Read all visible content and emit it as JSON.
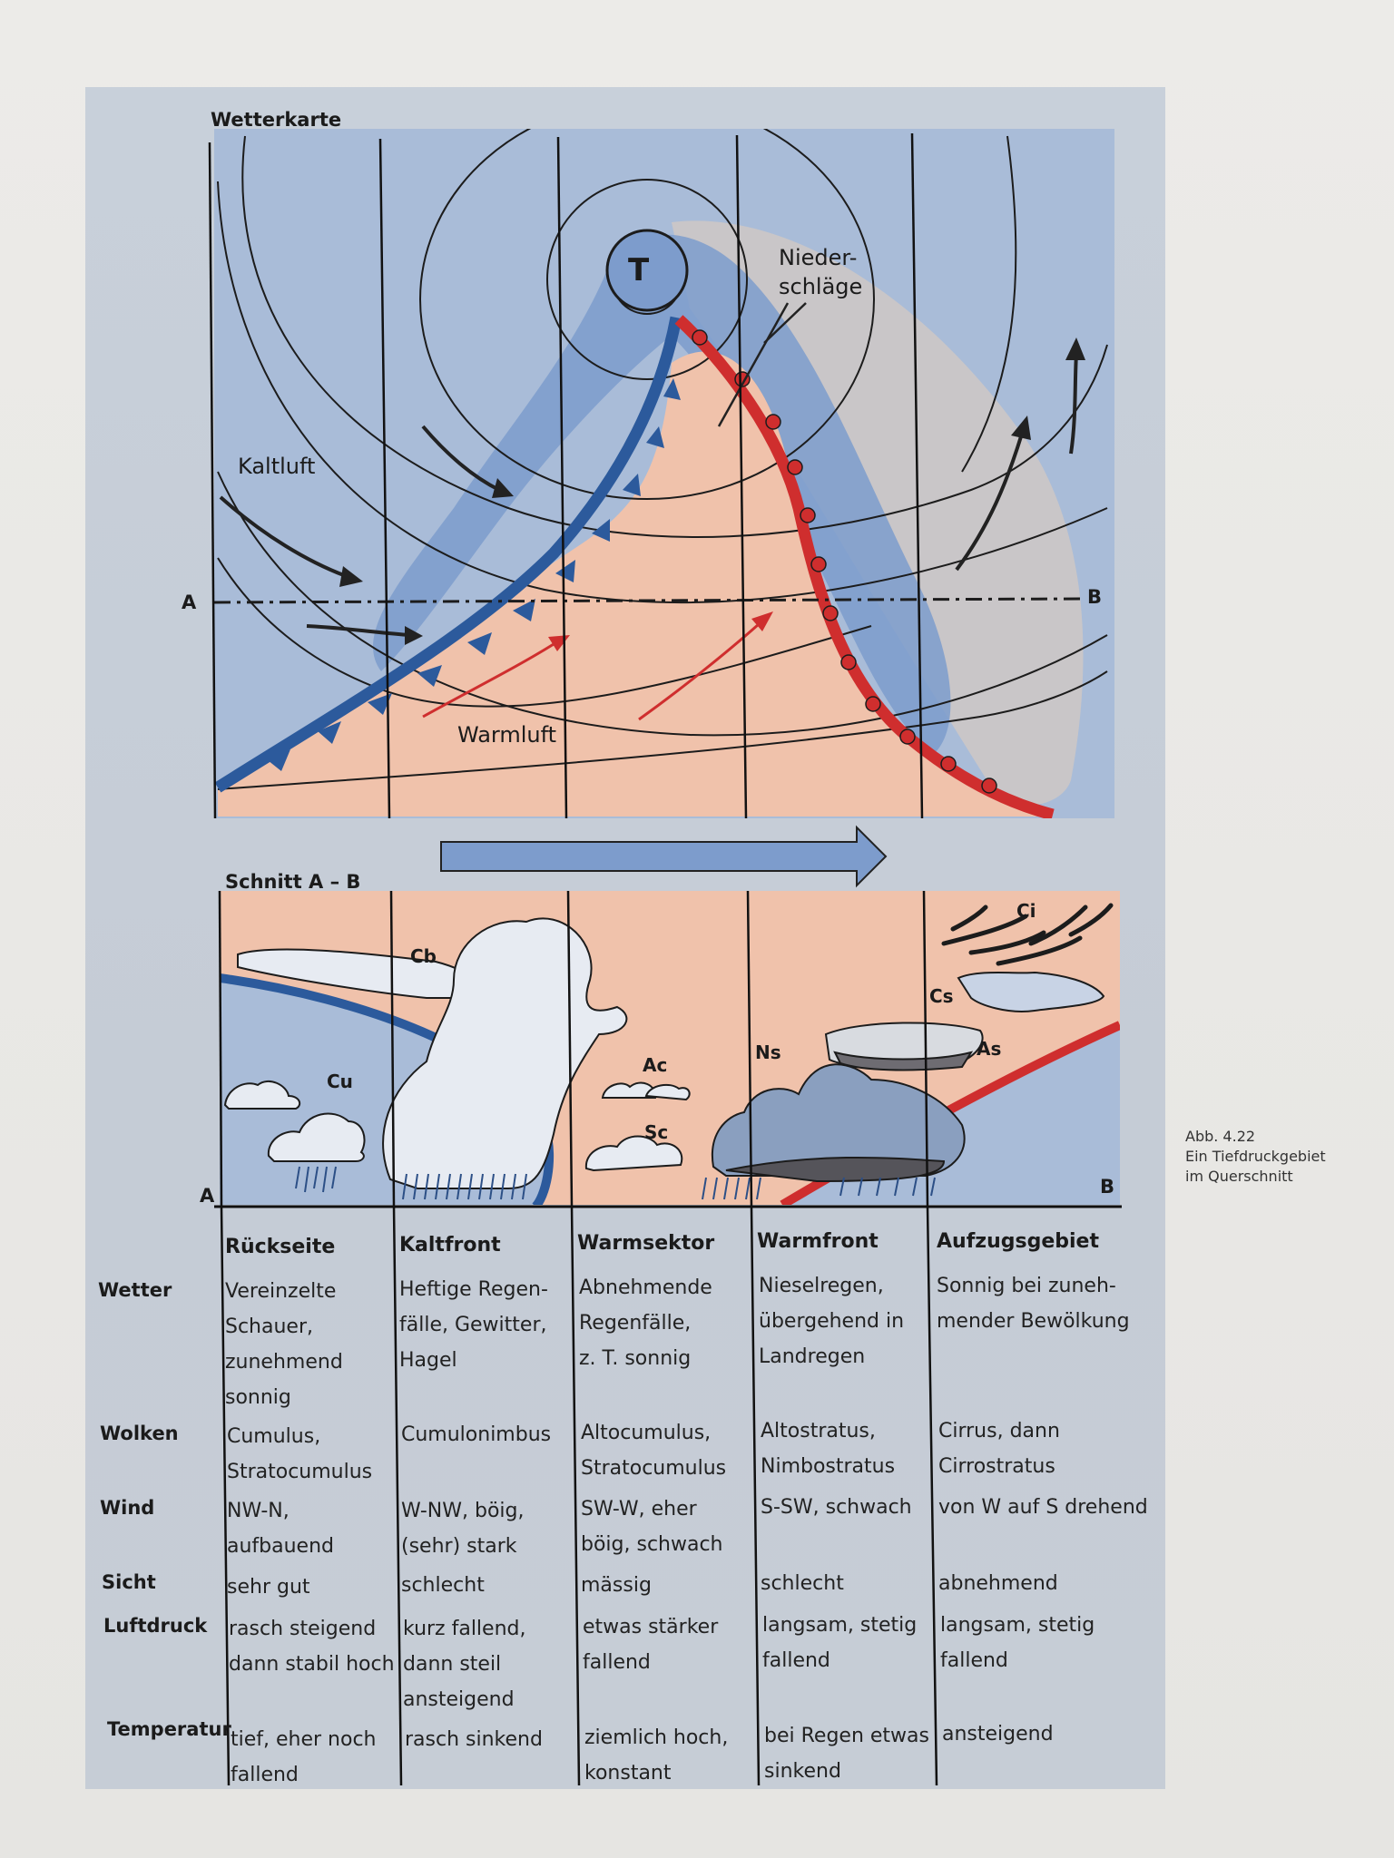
{
  "map": {
    "title": "Wetterkarte",
    "low_symbol": "T",
    "precip_label": "Nieder-\nschläge",
    "cold_air_label": "Kaltluft",
    "warm_air_label": "Warmluft",
    "point_a": "A",
    "point_b": "B"
  },
  "section": {
    "title": "Schnitt A – B",
    "point_a": "A",
    "point_b": "B",
    "clouds": {
      "cb": "Cb",
      "cu": "Cu",
      "ac": "Ac",
      "sc": "Sc",
      "ns": "Ns",
      "as": "As",
      "cs": "Cs",
      "ci": "Ci"
    }
  },
  "table": {
    "columns": [
      "Rückseite",
      "Kaltfront",
      "Warmsektor",
      "Warmfront",
      "Aufzugsgebiet"
    ],
    "rows": [
      {
        "label": "Wetter",
        "cells": [
          "Vereinzelte\nSchauer,\nzunehmend\nsonnig",
          "Heftige Regen-\nfälle, Gewitter,\nHagel",
          "Abnehmende\nRegenfälle,\nz. T. sonnig",
          "Nieselregen,\nübergehend in\nLandregen",
          "Sonnig bei zuneh-\nmender Bewölkung"
        ]
      },
      {
        "label": "Wolken",
        "cells": [
          "Cumulus,\nStratocumulus",
          "Cumulonimbus",
          "Altocumulus,\nStratocumulus",
          "Altostratus,\nNimbostratus",
          "Cirrus, dann\nCirrostratus"
        ]
      },
      {
        "label": "Wind",
        "cells": [
          "NW-N,\naufbauend",
          "W-NW, böig,\n(sehr) stark",
          "SW-W, eher\nböig, schwach",
          "S-SW, schwach",
          "von W auf S drehend"
        ]
      },
      {
        "label": "Sicht",
        "cells": [
          "sehr gut",
          "schlecht",
          "mässig",
          "schlecht",
          "abnehmend"
        ]
      },
      {
        "label": "Luftdruck",
        "cells": [
          "rasch steigend\ndann stabil hoch",
          "kurz fallend,\ndann steil\nansteigend",
          "etwas stärker\nfallend",
          "langsam, stetig\nfallend",
          "langsam, stetig\nfallend"
        ]
      },
      {
        "label": "Temperatur",
        "cells": [
          "tief, eher noch\nfallend",
          "rasch sinkend",
          "ziemlich hoch,\nkonstant",
          "bei Regen etwas\nsinkend",
          "ansteigend"
        ]
      }
    ]
  },
  "caption": "Abb. 4.22\nEin Tiefdruckgebiet\nim Querschnitt",
  "colors": {
    "sky": "#a9bcd8",
    "warm_sector": "#f0c2ab",
    "cold_front": "#2c5a9c",
    "warm_front": "#cf2e2e",
    "precip_blue": "#7d9ccc",
    "precip_grey": "#c9c6c8"
  }
}
